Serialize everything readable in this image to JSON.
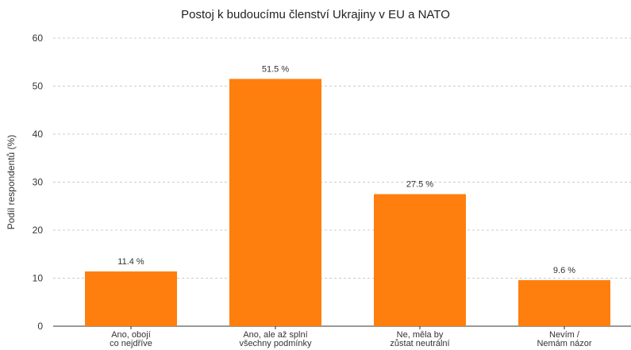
{
  "chart_data": {
    "type": "bar",
    "title": "Postoj k budoucímu členství Ukrajiny v EU a NATO",
    "xlabel": "",
    "ylabel": "Podíl respondentů (%)",
    "ylim": [
      0,
      60
    ],
    "yticks": [
      0,
      10,
      20,
      30,
      40,
      50,
      60
    ],
    "grid": true,
    "grid_axis": "y",
    "categories": [
      [
        "Ano, obojí",
        "co nejdříve"
      ],
      [
        "Ano, ale až splní",
        "všechny podmínky"
      ],
      [
        "Ne, měla by",
        "zůstat neutrální"
      ],
      [
        "Nevím /",
        "Nemám názor"
      ]
    ],
    "values": [
      11.4,
      51.5,
      27.5,
      9.6
    ],
    "data_labels": [
      "11.4 %",
      "51.5 %",
      "27.5 %",
      "9.6 %"
    ],
    "bar_color": "#FF7F0E"
  }
}
